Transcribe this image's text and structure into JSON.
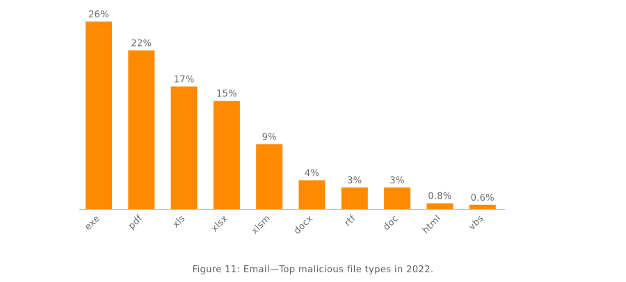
{
  "chart_data": {
    "type": "bar",
    "categories": [
      "exe",
      "pdf",
      "xls",
      "xlsx",
      "xlsm",
      "docx",
      "rtf",
      "doc",
      "html",
      "vbs"
    ],
    "values": [
      26,
      22,
      17,
      15,
      9,
      4,
      3,
      3,
      0.8,
      0.6
    ],
    "value_labels": [
      "26%",
      "22%",
      "17%",
      "15%",
      "9%",
      "4%",
      "3%",
      "3%",
      "0.8%",
      "0.6%"
    ],
    "unit": "%",
    "ylim": [
      0,
      26
    ],
    "grid": false,
    "legend": "none",
    "bar_color": "#FF8A00",
    "axis_color": "#bdbdbd",
    "text_color": "#6b6b6b"
  },
  "caption": "Figure 11: Email—Top malicious file types in 2022."
}
